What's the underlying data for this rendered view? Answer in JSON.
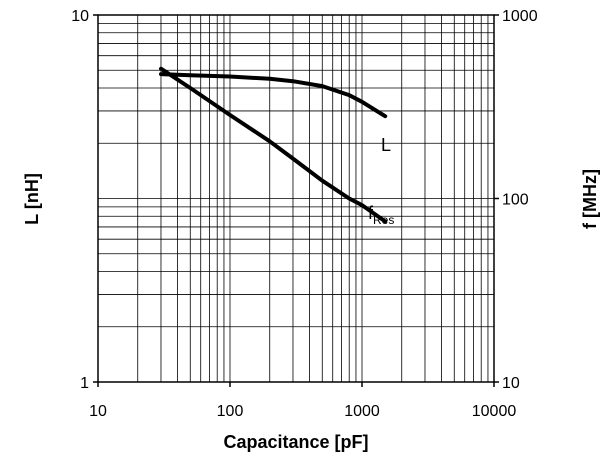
{
  "chart_data": {
    "type": "line",
    "title": "",
    "xlabel": "Capacitance [pF]",
    "ylabel_left": "L [nH]",
    "ylabel_right": "f [MHz]",
    "x_scale": "log",
    "y_left_scale": "log",
    "y_right_scale": "log",
    "xlim": [
      10,
      10000
    ],
    "ylim_left": [
      1,
      10
    ],
    "ylim_right": [
      10,
      1000
    ],
    "grid": true,
    "legend": "none",
    "x_ticks": [
      "10",
      "100",
      "1000",
      "10000"
    ],
    "y_left_ticks": [
      "1",
      "10"
    ],
    "y_right_ticks": [
      "10",
      "100",
      "1000"
    ],
    "series": [
      {
        "name": "L",
        "axis": "left",
        "label_main": "L",
        "label_sub": "",
        "x": [
          30,
          50,
          100,
          200,
          300,
          500,
          800,
          1000,
          1500
        ],
        "values": [
          6.9,
          6.85,
          6.8,
          6.7,
          6.6,
          6.4,
          6.05,
          5.8,
          5.3
        ]
      },
      {
        "name": "fRes",
        "axis": "right",
        "label_main": "f",
        "label_sub": "Res",
        "x": [
          30,
          50,
          100,
          200,
          300,
          500,
          800,
          1000,
          1500
        ],
        "values": [
          510,
          400,
          285,
          205,
          165,
          125,
          100,
          92,
          75
        ]
      }
    ]
  }
}
